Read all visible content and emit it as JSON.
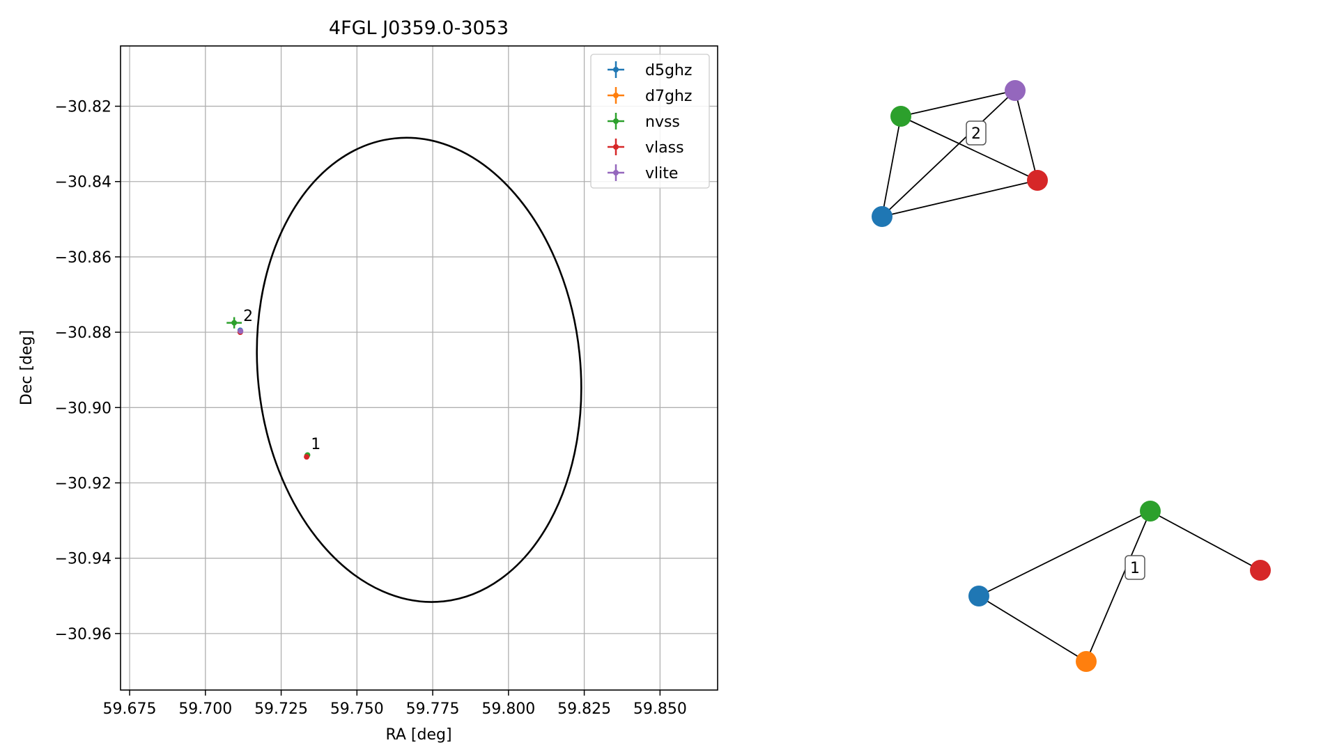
{
  "chart_data": [
    {
      "type": "scatter",
      "title": "4FGL J0359.0-3053",
      "xlabel": "RA [deg]",
      "ylabel": "Dec [deg]",
      "xlim": [
        59.672,
        59.869
      ],
      "ylim": [
        -30.975,
        -30.804
      ],
      "xticks": [
        59.675,
        59.7,
        59.725,
        59.75,
        59.775,
        59.8,
        59.825,
        59.85
      ],
      "xtick_labels": [
        "59.675",
        "59.700",
        "59.725",
        "59.750",
        "59.775",
        "59.800",
        "59.825",
        "59.850"
      ],
      "yticks": [
        -30.82,
        -30.84,
        -30.86,
        -30.88,
        -30.9,
        -30.92,
        -30.94,
        -30.96
      ],
      "ytick_labels": [
        "−30.82",
        "−30.84",
        "−30.86",
        "−30.88",
        "−30.90",
        "−30.92",
        "−30.94",
        "−30.96"
      ],
      "grid": true,
      "legend_position": "top-right",
      "series": [
        {
          "name": "d5ghz",
          "color": "#1f77b4",
          "points": [
            [
              59.7115,
              -30.8795
            ],
            [
              59.7335,
              -30.9128
            ]
          ]
        },
        {
          "name": "d7ghz",
          "color": "#ff7f0e",
          "points": [
            [
              59.7335,
              -30.9129
            ]
          ]
        },
        {
          "name": "nvss",
          "color": "#2ca02c",
          "points": [
            [
              59.7095,
              -30.8775
            ],
            [
              59.7337,
              -30.9126
            ]
          ],
          "xerr": [
            0.0025,
            0.0005
          ],
          "yerr": [
            0.0015,
            0.0004
          ]
        },
        {
          "name": "vlass",
          "color": "#d62728",
          "points": [
            [
              59.7115,
              -30.88
            ],
            [
              59.7334,
              -30.9131
            ]
          ]
        },
        {
          "name": "vlite",
          "color": "#9467bd",
          "points": [
            [
              59.7116,
              -30.8797
            ]
          ]
        }
      ],
      "annotations": [
        {
          "text": "2",
          "x": 59.7125,
          "y": -30.877
        },
        {
          "text": "1",
          "x": 59.7348,
          "y": -30.911
        }
      ],
      "ellipse": {
        "center": [
          59.7705,
          -30.89
        ],
        "semi_major_deg": 0.0532,
        "semi_minor_deg": 0.0618,
        "outline_color": "#000000"
      }
    },
    {
      "type": "network",
      "clusters": [
        {
          "label": "2",
          "nodes": [
            {
              "id": "d5ghz",
              "color": "#1f77b4"
            },
            {
              "id": "nvss",
              "color": "#2ca02c"
            },
            {
              "id": "vlite",
              "color": "#9467bd"
            },
            {
              "id": "vlass",
              "color": "#d62728"
            }
          ],
          "edges": [
            [
              "nvss",
              "vlite"
            ],
            [
              "nvss",
              "vlass"
            ],
            [
              "nvss",
              "d5ghz"
            ],
            [
              "vlite",
              "vlass"
            ],
            [
              "vlite",
              "d5ghz"
            ],
            [
              "d5ghz",
              "vlass"
            ]
          ]
        },
        {
          "label": "1",
          "nodes": [
            {
              "id": "d5ghz",
              "color": "#1f77b4"
            },
            {
              "id": "d7ghz",
              "color": "#ff7f0e"
            },
            {
              "id": "nvss",
              "color": "#2ca02c"
            },
            {
              "id": "vlass",
              "color": "#d62728"
            }
          ],
          "edges": [
            [
              "nvss",
              "d5ghz"
            ],
            [
              "nvss",
              "d7ghz"
            ],
            [
              "nvss",
              "vlass"
            ],
            [
              "d5ghz",
              "d7ghz"
            ]
          ]
        }
      ]
    }
  ]
}
